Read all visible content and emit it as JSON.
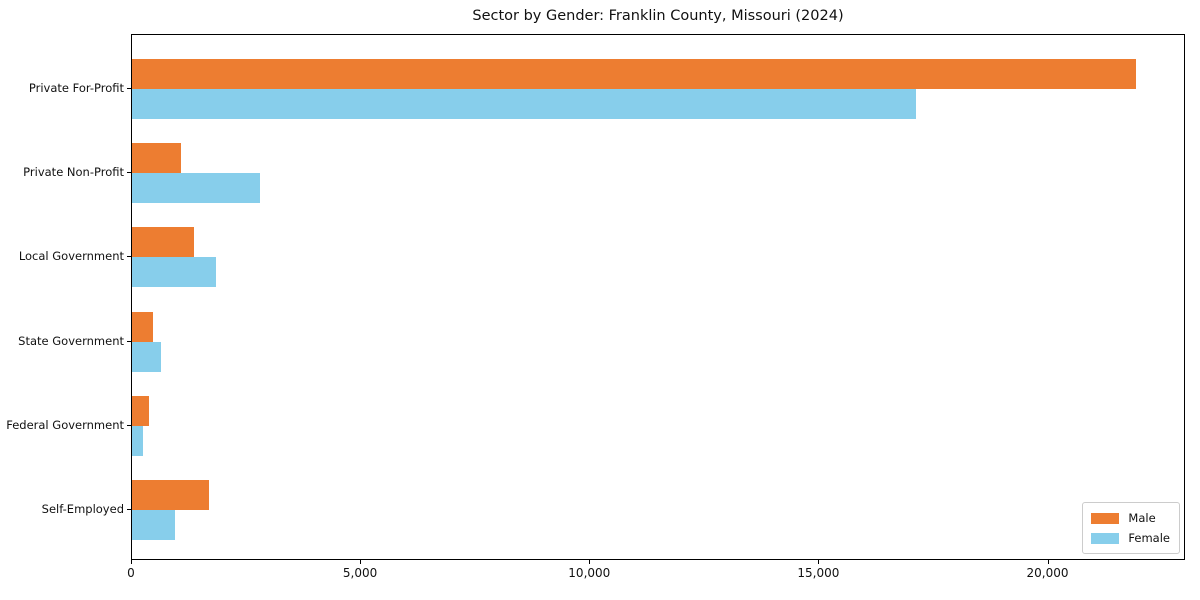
{
  "chart_data": {
    "type": "bar",
    "orientation": "horizontal",
    "title": "Sector by Gender: Franklin County, Missouri (2024)",
    "categories": [
      "Private For-Profit",
      "Private Non-Profit",
      "Local Government",
      "State Government",
      "Federal Government",
      "Self-Employed"
    ],
    "series": [
      {
        "name": "Male",
        "color": "#ED7D31",
        "values": [
          21900,
          1060,
          1360,
          460,
          360,
          1680
        ]
      },
      {
        "name": "Female",
        "color": "#87CEEB",
        "values": [
          17100,
          2800,
          1830,
          630,
          230,
          940
        ]
      }
    ],
    "xlabel": "",
    "ylabel": "",
    "xlim": [
      0,
      23000
    ],
    "xticks": [
      {
        "value": 0,
        "label": "0"
      },
      {
        "value": 5000,
        "label": "5,000"
      },
      {
        "value": 10000,
        "label": "10,000"
      },
      {
        "value": 15000,
        "label": "15,000"
      },
      {
        "value": 20000,
        "label": "20,000"
      }
    ],
    "grid": false,
    "legend_position": "lower right",
    "spine_color": "#000000"
  }
}
